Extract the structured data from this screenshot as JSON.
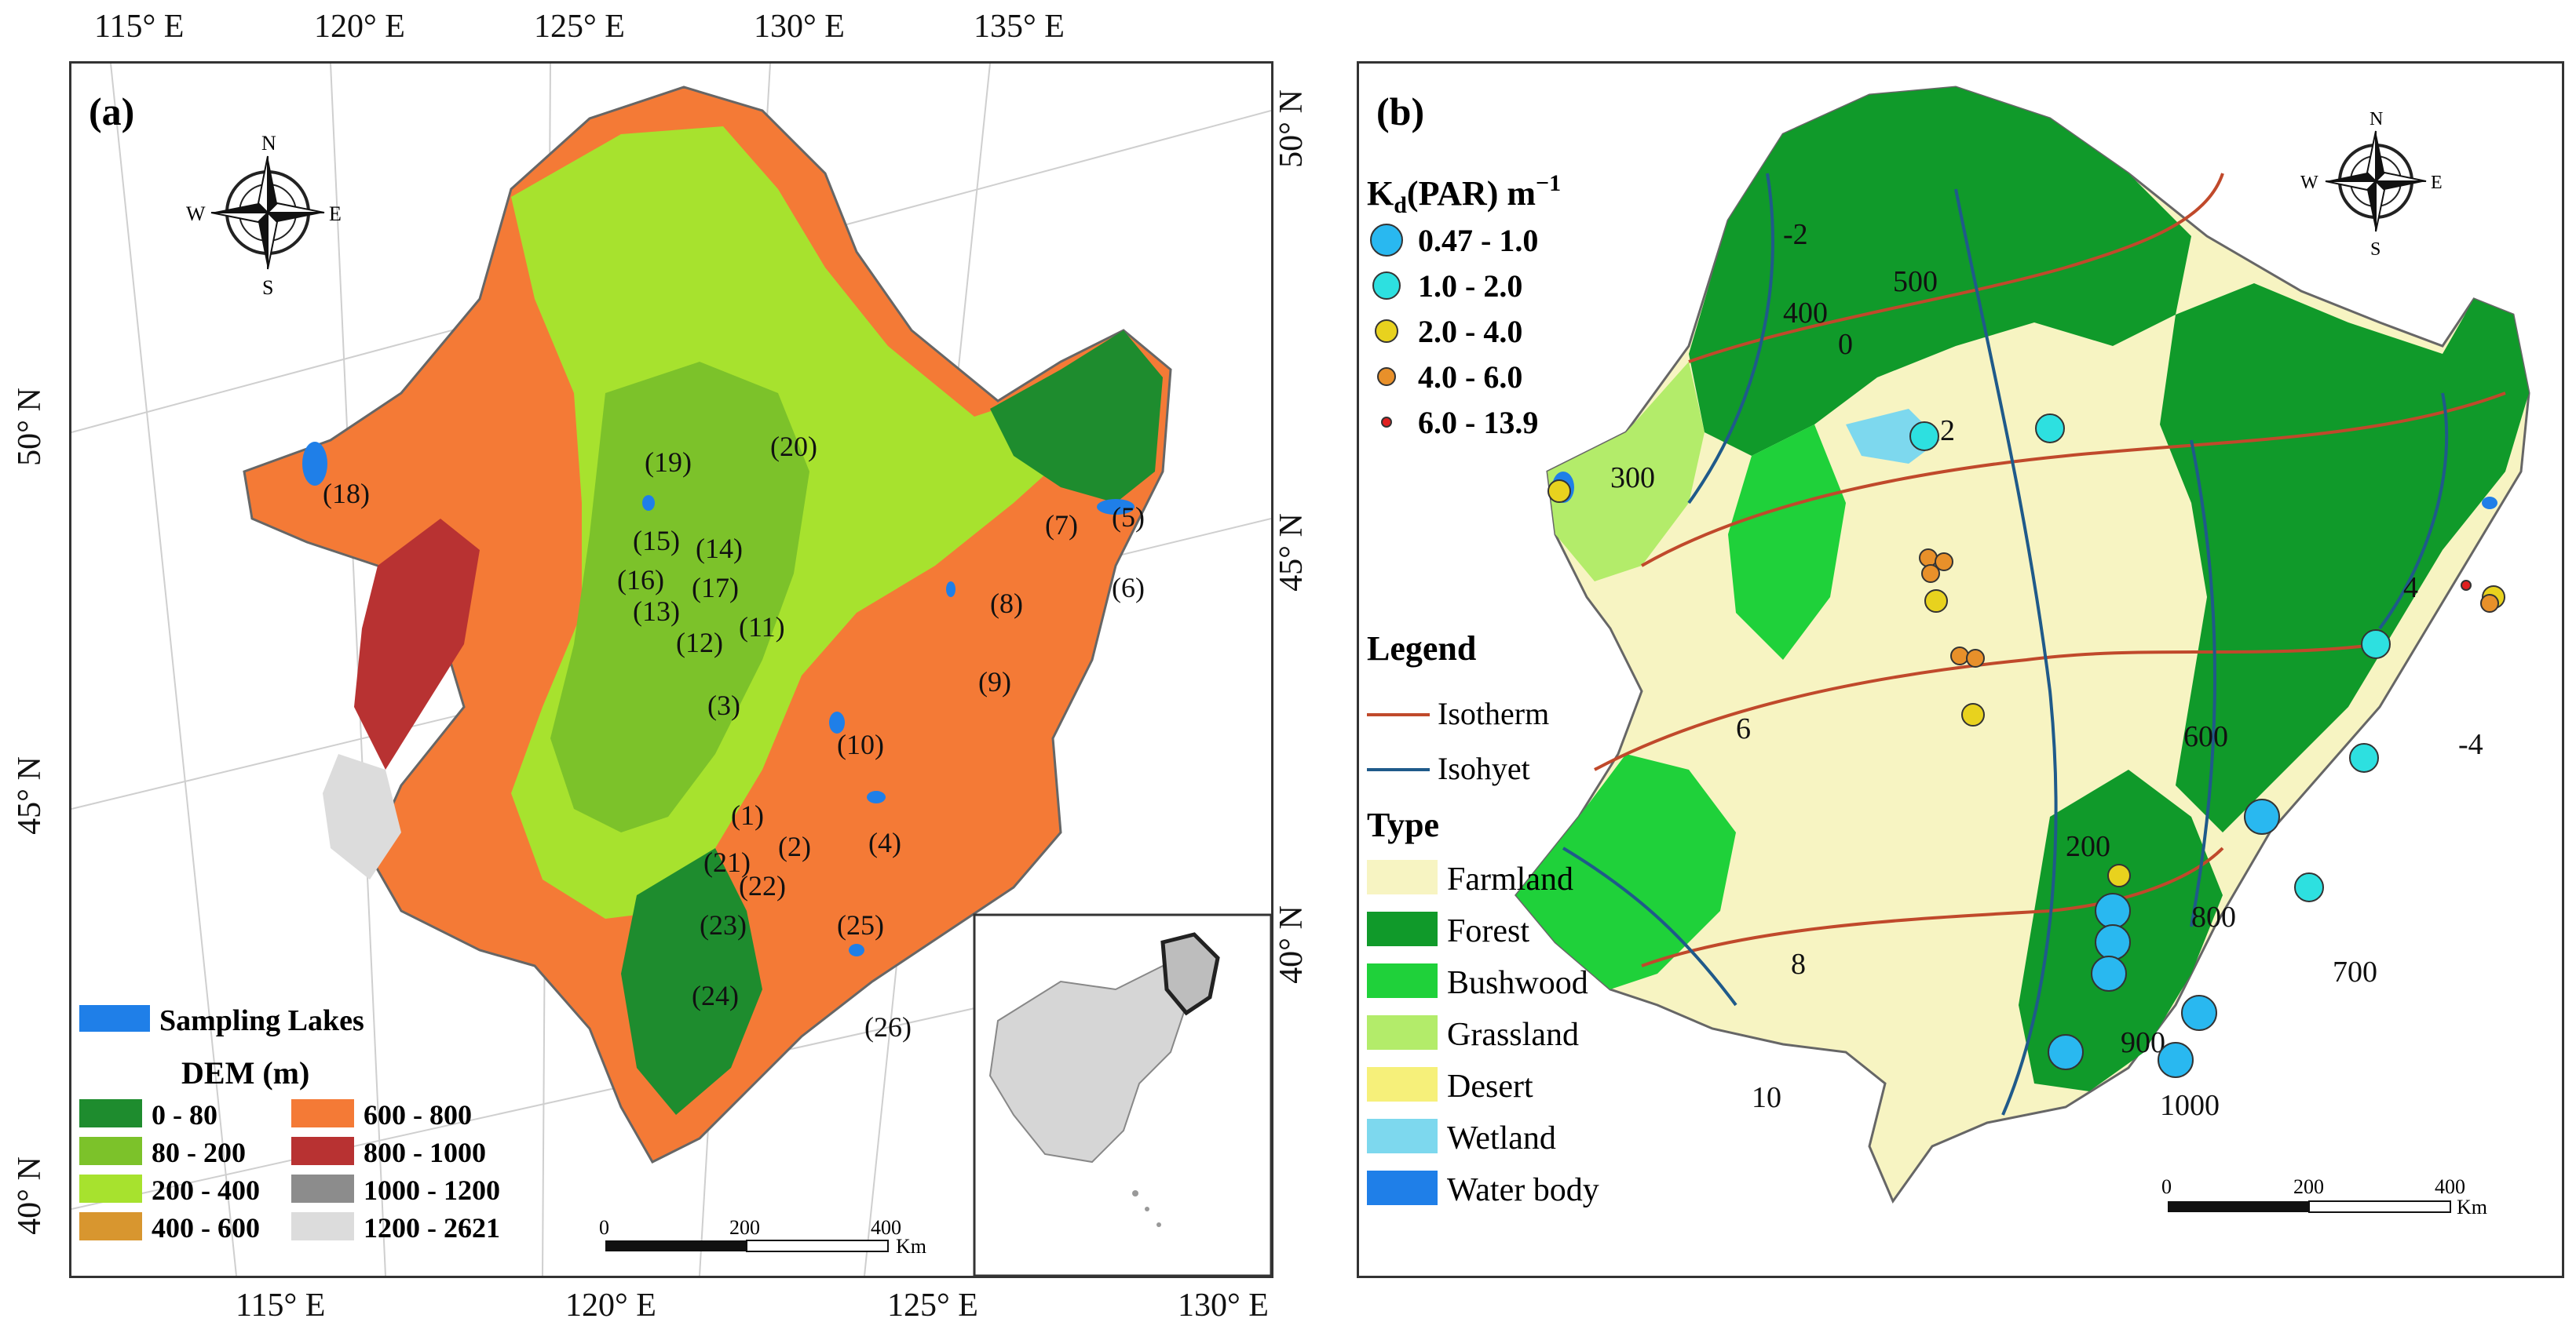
{
  "panel_a": {
    "label": "(a)",
    "top_ticks": [
      "115° E",
      "120° E",
      "125° E",
      "130° E",
      "135° E"
    ],
    "bottom_ticks": [
      "115° E",
      "120° E",
      "125° E",
      "130° E"
    ],
    "left_ticks": [
      "50° N",
      "45° N",
      "40° N"
    ],
    "right_ticks": [
      "50° N",
      "45° N",
      "40° N"
    ],
    "compass": {
      "n": "N",
      "s": "S",
      "e": "E",
      "w": "W"
    },
    "lake_labels": [
      "(1)",
      "(2)",
      "(3)",
      "(4)",
      "(5)",
      "(6)",
      "(7)",
      "(8)",
      "(9)",
      "(10)",
      "(11)",
      "(12)",
      "(13)",
      "(14)",
      "(15)",
      "(16)",
      "(17)",
      "(18)",
      "(19)",
      "(20)",
      "(21)",
      "(22)",
      "(23)",
      "(24)",
      "(25)",
      "(26)"
    ],
    "sampling_lakes_label": "Sampling Lakes",
    "dem_title": "DEM (m)",
    "dem_classes": [
      {
        "label": "0 - 80",
        "color": "#1e8c2e"
      },
      {
        "label": "80 - 200",
        "color": "#7cc22a"
      },
      {
        "label": "200 - 400",
        "color": "#a7e22e"
      },
      {
        "label": "400 - 600",
        "color": "#d8962f"
      },
      {
        "label": "600 - 800",
        "color": "#f47a36"
      },
      {
        "label": "800 - 1000",
        "color": "#b83232"
      },
      {
        "label": "1000 - 1200",
        "color": "#8c8c8c"
      },
      {
        "label": "1200 - 2621",
        "color": "#dcdcdc"
      }
    ],
    "scale": {
      "ticks": [
        "0",
        "200",
        "400"
      ],
      "unit": "Km"
    }
  },
  "panel_b": {
    "label": "(b)",
    "kd_title": "K",
    "kd_title_sub": "d",
    "kd_title_rest": "(PAR) m",
    "kd_title_sup": "−1",
    "kd_classes": [
      {
        "label": "0.47 - 1.0",
        "color": "#29b8f0"
      },
      {
        "label": "1.0 - 2.0",
        "color": "#2de0e0"
      },
      {
        "label": "2.0 - 4.0",
        "color": "#e8d21e"
      },
      {
        "label": "4.0 - 6.0",
        "color": "#e8902a"
      },
      {
        "label": "6.0 - 13.9",
        "color": "#e02020"
      }
    ],
    "legend_title": "Legend",
    "isotherm_label": "Isotherm",
    "isohyet_label": "Isohyet",
    "isotherm_color": "#c0492b",
    "isohyet_color": "#1f5a8a",
    "type_title": "Type",
    "types": [
      {
        "label": "Farmland",
        "color": "#f7f4c2"
      },
      {
        "label": "Forest",
        "color": "#109a2a"
      },
      {
        "label": "Bushwood",
        "color": "#1fd13a"
      },
      {
        "label": "Grassland",
        "color": "#b3ec6a"
      },
      {
        "label": "Desert",
        "color": "#f6f07a"
      },
      {
        "label": "Wetland",
        "color": "#7dd8ee"
      },
      {
        "label": "Water body",
        "color": "#1f7fe8"
      }
    ],
    "compass": {
      "n": "N",
      "s": "S",
      "e": "E",
      "w": "W"
    },
    "contour_labels": [
      "500",
      "400",
      "300",
      "200",
      "2",
      "0",
      "4",
      "6",
      "8",
      "10",
      "600",
      "700",
      "800",
      "900",
      "1000",
      "-2",
      "-4"
    ],
    "scale": {
      "ticks": [
        "0",
        "200",
        "400"
      ],
      "unit": "Km"
    }
  }
}
